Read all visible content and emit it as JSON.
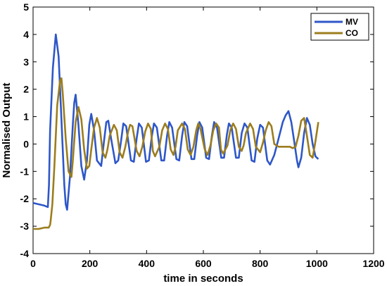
{
  "chart_data": {
    "type": "line",
    "xlabel": "time in seconds",
    "ylabel": "Normalised Output",
    "xlim": [
      0,
      1200
    ],
    "ylim": [
      -4,
      5
    ],
    "xticks": [
      0,
      200,
      400,
      600,
      800,
      1000,
      1200
    ],
    "yticks": [
      -4,
      -3,
      -2,
      -1,
      0,
      1,
      2,
      3,
      4,
      5
    ],
    "grid": false,
    "legend_position": "top-right",
    "series": [
      {
        "name": "MV",
        "color": "#2e57c8",
        "x": [
          0,
          20,
          40,
          52,
          56,
          60,
          70,
          80,
          90,
          100,
          110,
          115,
          120,
          130,
          140,
          145,
          150,
          160,
          170,
          180,
          190,
          198,
          205,
          215,
          225,
          240,
          250,
          258,
          265,
          275,
          290,
          300,
          310,
          318,
          328,
          345,
          355,
          365,
          373,
          383,
          398,
          408,
          418,
          426,
          436,
          452,
          462,
          472,
          480,
          490,
          505,
          515,
          525,
          533,
          543,
          558,
          568,
          578,
          586,
          596,
          610,
          620,
          630,
          638,
          648,
          663,
          673,
          683,
          690,
          700,
          715,
          725,
          735,
          745,
          755,
          770,
          780,
          790,
          800,
          810,
          825,
          835,
          850,
          860,
          870,
          880,
          890,
          900,
          910,
          920,
          930,
          935,
          945,
          955,
          965,
          975,
          985,
          995,
          1005
        ],
        "y": [
          -2.15,
          -2.2,
          -2.25,
          -2.3,
          -1.5,
          0.5,
          2.8,
          4.0,
          3.2,
          0.9,
          -1.5,
          -2.2,
          -2.4,
          -1.2,
          0.7,
          1.5,
          1.8,
          0.7,
          -0.8,
          -1.3,
          -0.6,
          0.7,
          1.1,
          0.5,
          -0.6,
          -0.8,
          0.1,
          0.8,
          0.85,
          0.2,
          -0.7,
          -0.6,
          0.1,
          0.75,
          0.65,
          -0.6,
          -0.65,
          0.2,
          0.75,
          0.6,
          -0.65,
          -0.6,
          0.25,
          0.75,
          0.6,
          -0.6,
          -0.6,
          0.3,
          0.8,
          0.6,
          -0.55,
          -0.6,
          0.3,
          0.8,
          0.65,
          -0.55,
          -0.55,
          0.3,
          0.8,
          0.6,
          -0.5,
          -0.55,
          0.3,
          0.8,
          0.6,
          -0.5,
          -0.5,
          0.35,
          0.75,
          0.6,
          -0.5,
          -0.5,
          0.4,
          0.75,
          0.6,
          -0.6,
          -0.65,
          0.2,
          0.7,
          0.6,
          -0.6,
          -0.75,
          -0.4,
          0.0,
          0.4,
          0.8,
          1.05,
          1.2,
          0.8,
          0.1,
          -0.6,
          -0.85,
          -0.5,
          0.4,
          0.95,
          0.7,
          0.0,
          -0.45,
          -0.55
        ]
      },
      {
        "name": "CO",
        "color": "#9c7d1e",
        "x": [
          0,
          20,
          40,
          55,
          60,
          62,
          68,
          75,
          85,
          95,
          100,
          105,
          115,
          125,
          135,
          140,
          150,
          160,
          170,
          180,
          190,
          198,
          205,
          215,
          225,
          235,
          245,
          255,
          262,
          270,
          285,
          295,
          305,
          315,
          325,
          335,
          342,
          350,
          365,
          375,
          385,
          395,
          405,
          415,
          422,
          430,
          445,
          455,
          465,
          475,
          485,
          495,
          502,
          510,
          525,
          535,
          545,
          555,
          565,
          575,
          582,
          590,
          605,
          615,
          625,
          635,
          645,
          655,
          662,
          670,
          685,
          695,
          705,
          715,
          725,
          735,
          742,
          750,
          765,
          775,
          785,
          800,
          810,
          820,
          830,
          840,
          850,
          865,
          880,
          895,
          905,
          915,
          925,
          935,
          945,
          955,
          965,
          975,
          985,
          995,
          1005
        ],
        "y": [
          -3.1,
          -3.1,
          -3.05,
          -3.05,
          -2.95,
          -2.8,
          -2.2,
          -0.8,
          1.4,
          2.3,
          2.4,
          1.8,
          0.2,
          -1.0,
          -1.2,
          -0.6,
          0.8,
          1.35,
          0.9,
          -0.2,
          -0.9,
          -0.8,
          -0.2,
          0.6,
          0.95,
          0.6,
          -0.3,
          -0.5,
          -0.2,
          0.3,
          0.7,
          0.5,
          -0.3,
          -0.5,
          -0.1,
          0.45,
          0.7,
          0.65,
          -0.25,
          -0.45,
          -0.1,
          0.45,
          0.75,
          0.55,
          -0.25,
          -0.45,
          -0.1,
          0.5,
          0.75,
          0.55,
          -0.2,
          -0.4,
          -0.1,
          0.5,
          0.75,
          0.55,
          -0.2,
          -0.4,
          -0.1,
          0.5,
          0.75,
          0.55,
          -0.2,
          -0.4,
          -0.05,
          0.5,
          0.75,
          0.6,
          -0.2,
          -0.35,
          -0.05,
          0.5,
          0.75,
          0.55,
          -0.1,
          -0.25,
          -0.05,
          0.4,
          0.75,
          0.55,
          -0.1,
          -0.3,
          0.05,
          0.5,
          0.8,
          0.65,
          0.0,
          -0.1,
          -0.1,
          -0.1,
          -0.1,
          -0.15,
          -0.1,
          0.3,
          0.85,
          0.95,
          0.3,
          -0.4,
          -0.5,
          0.1,
          0.8
        ]
      }
    ]
  }
}
